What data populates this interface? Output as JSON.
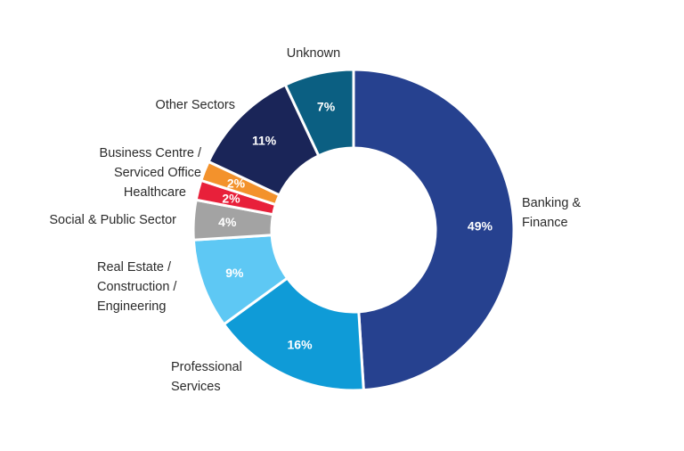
{
  "chart_data": {
    "type": "pie",
    "donut": true,
    "slices": [
      {
        "label": "Banking & Finance",
        "label_lines": [
          "Banking &",
          "Finance"
        ],
        "value": 49,
        "value_label": "49%",
        "color": "#26418f"
      },
      {
        "label": "Professional Services",
        "label_lines": [
          "Professional",
          "Services"
        ],
        "value": 16,
        "value_label": "16%",
        "color": "#0f9bd7"
      },
      {
        "label": "Real Estate / Construction / Engineering",
        "label_lines": [
          "Real Estate /",
          "Construction /",
          "Engineering"
        ],
        "value": 9,
        "value_label": "9%",
        "color": "#5ec8f4"
      },
      {
        "label": "Social & Public Sector",
        "label_lines": [
          "Social & Public Sector"
        ],
        "value": 4,
        "value_label": "4%",
        "color": "#a3a3a3"
      },
      {
        "label": "Healthcare",
        "label_lines": [
          "Healthcare"
        ],
        "value": 2,
        "value_label": "2%",
        "color": "#e8203a"
      },
      {
        "label": "Business Centre / Serviced Office",
        "label_lines": [
          "Business Centre /",
          "Serviced Office"
        ],
        "value": 2,
        "value_label": "2%",
        "color": "#f3922c"
      },
      {
        "label": "Other Sectors",
        "label_lines": [
          "Other Sectors"
        ],
        "value": 11,
        "value_label": "11%",
        "color": "#1a2558"
      },
      {
        "label": "Unknown",
        "label_lines": [
          "Unknown"
        ],
        "value": 7,
        "value_label": "7%",
        "color": "#0b5f82"
      }
    ]
  }
}
